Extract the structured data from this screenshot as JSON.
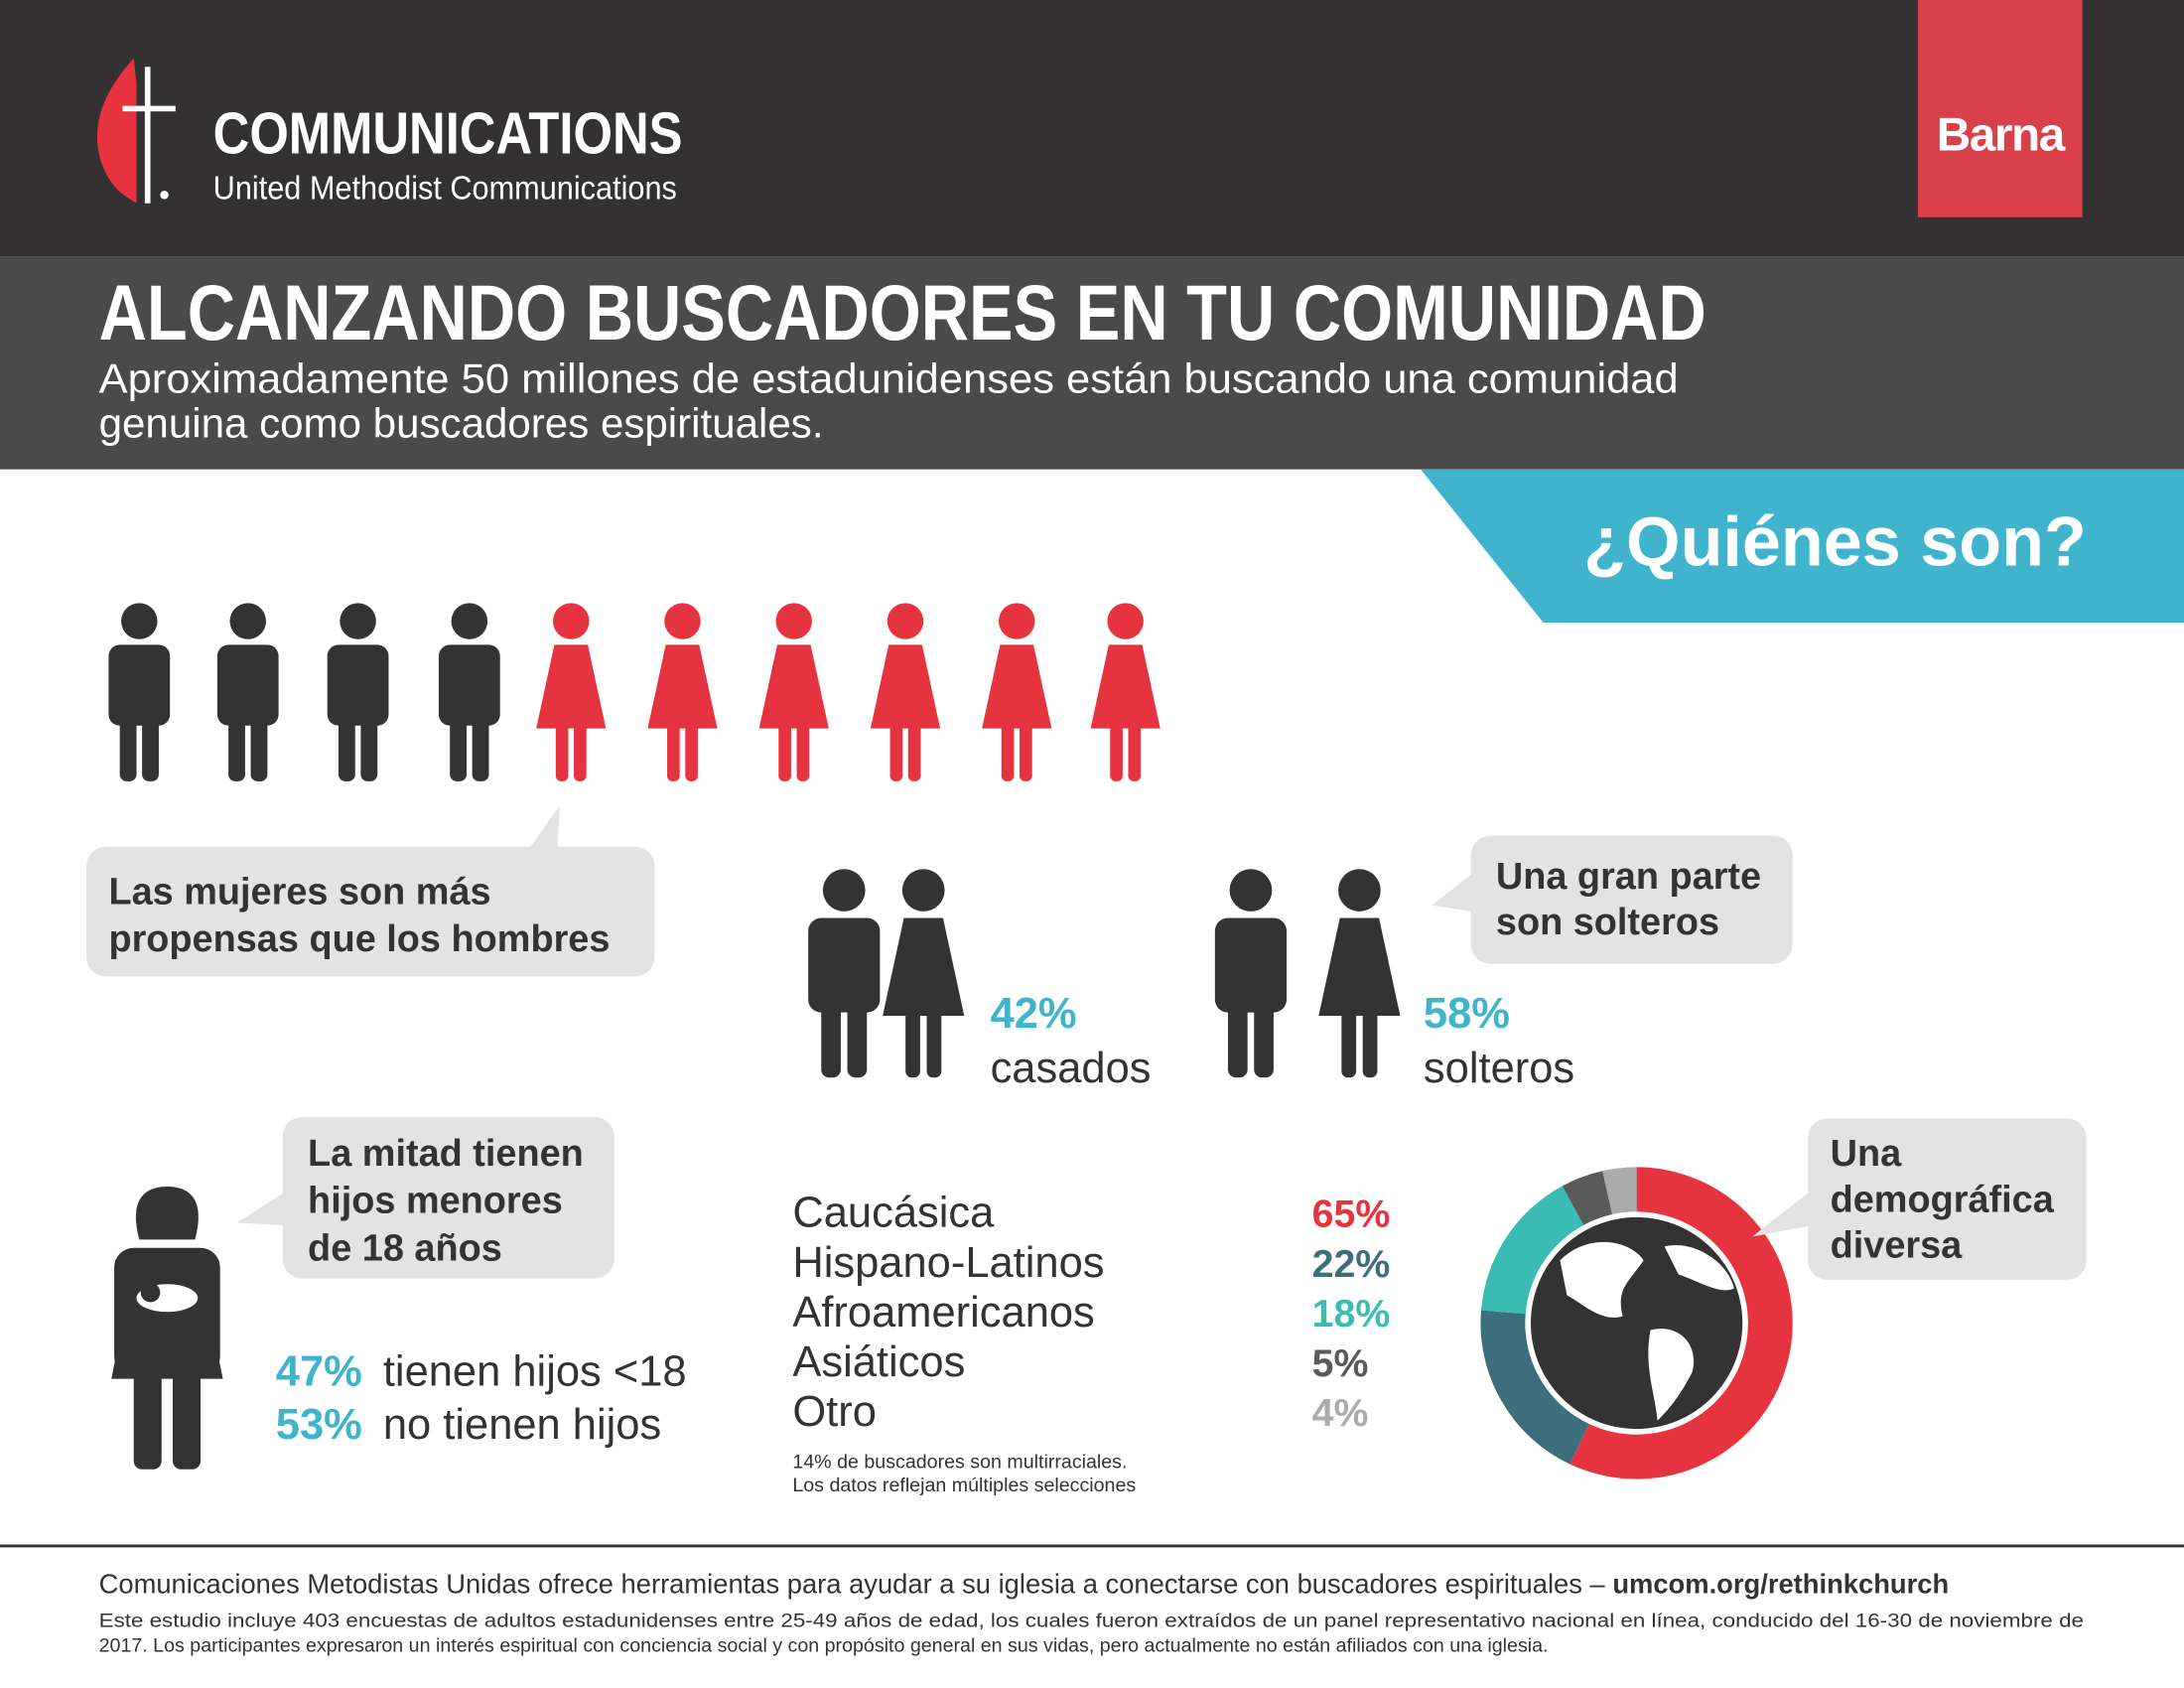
{
  "header": {
    "org": "COMMUNICATIONS",
    "org_sub": "United Methodist Communications",
    "partner": "Barna"
  },
  "title": "ALCANZANDO BUSCADORES EN TU COMUNIDAD",
  "subtitle_lines": [
    "Aproximadamente 50 millones de estadunidenses están buscando una comunidad",
    "genuina como buscadores espirituales."
  ],
  "section": "¿Quiénes son?",
  "gender": {
    "callout_lines": [
      "Las mujeres son más",
      "propensas que los hombres"
    ]
  },
  "marital": {
    "callout_lines": [
      "Una gran parte",
      "son solteros"
    ],
    "married": {
      "pct": "42%",
      "label": "casados"
    },
    "single": {
      "pct": "58%",
      "label": "solteros"
    }
  },
  "children": {
    "callout_lines": [
      "La mitad tienen",
      "hijos menores",
      "de 18 años"
    ],
    "stats": [
      {
        "pct": "47%",
        "label": "tienen hijos <18"
      },
      {
        "pct": "53%",
        "label": "no tienen hijos"
      }
    ]
  },
  "demographics": {
    "rows": [
      {
        "name": "Caucásica",
        "value": 65,
        "label": "65%",
        "color": "#e5333f"
      },
      {
        "name": "Hispano-Latinos",
        "value": 22,
        "label": "22%",
        "color": "#3d6e7c"
      },
      {
        "name": "Afroamericanos",
        "value": 18,
        "label": "18%",
        "color": "#3bbcb2"
      },
      {
        "name": "Asiáticos",
        "value": 5,
        "label": "5%",
        "color": "#5a5a5a"
      },
      {
        "name": "Otro",
        "value": 4,
        "label": "4%",
        "color": "#ababab"
      }
    ],
    "note_lines": [
      "14% de buscadores son multirraciales.",
      "Los datos reflejan múltiples selecciones"
    ],
    "callout_lines": [
      "Una",
      "demográfica",
      "diversa"
    ]
  },
  "footer": {
    "line": "Comunicaciones Metodistas Unidas ofrece herramientas para ayudar a su iglesia a conectarse con buscadores espirituales –",
    "link": "umcom.org/rethinkchurch",
    "notes": [
      "Este estudio incluye 403 encuestas de adultos estadunidenses entre 25-49 años de edad, los cuales fueron extraídos de un panel representativo nacional en línea, conducido del 16-30 de noviembre de",
      "2017. Los participantes expresaron un interés espiritual con conciencia social y con propósito general en sus vidas, pero actualmente no están afiliados con una iglesia."
    ]
  }
}
